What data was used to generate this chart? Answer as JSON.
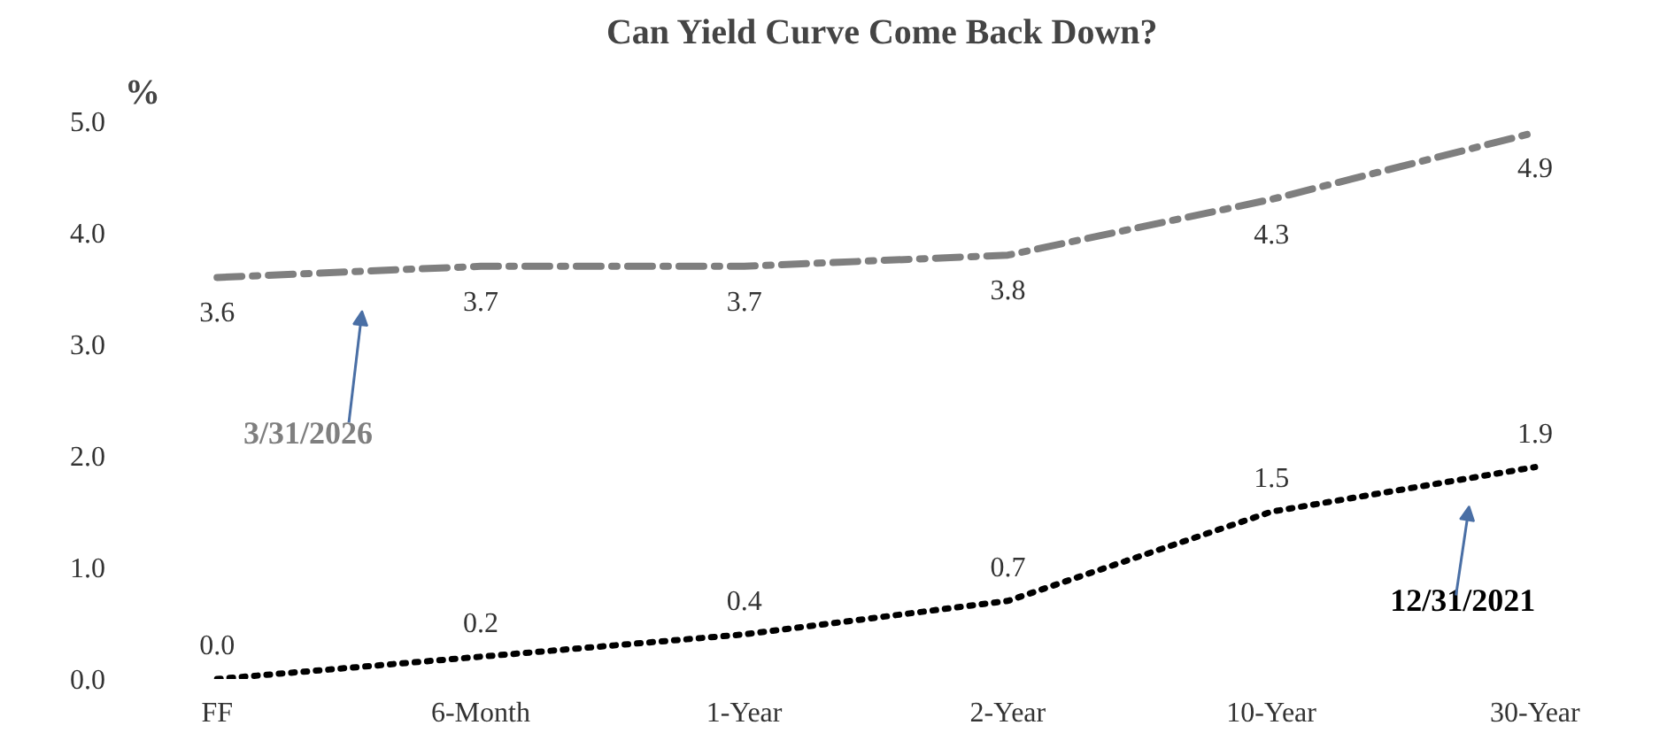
{
  "chart_data": {
    "type": "line",
    "title": "Can Yield Curve Come Back Down?",
    "ylabel": "%",
    "categories": [
      "FF",
      "6-Month",
      "1-Year",
      "2-Year",
      "10-Year",
      "30-Year"
    ],
    "series": [
      {
        "name": "3/31/2026",
        "color": "#7f7f7f",
        "line_style": "dashed",
        "values": [
          3.6,
          3.7,
          3.7,
          3.8,
          4.3,
          4.9
        ],
        "value_labels": [
          "3.6",
          "3.7",
          "3.7",
          "3.8",
          "4.3",
          "4.9"
        ]
      },
      {
        "name": "12/31/2021",
        "color": "#000000",
        "line_style": "dotted",
        "values": [
          0.0,
          0.2,
          0.4,
          0.7,
          1.5,
          1.9
        ],
        "value_labels": [
          "0.0",
          "0.2",
          "0.4",
          "0.7",
          "1.5",
          "1.9"
        ]
      }
    ],
    "ylim": [
      0,
      5
    ],
    "yticks": [
      {
        "value": 0,
        "label": "0.0"
      },
      {
        "value": 1,
        "label": "1.0"
      },
      {
        "value": 2,
        "label": "2.0"
      },
      {
        "value": 3,
        "label": "3.0"
      },
      {
        "value": 4,
        "label": "4.0"
      },
      {
        "value": 5,
        "label": "5.0"
      }
    ],
    "grid": false,
    "marker": "none"
  }
}
